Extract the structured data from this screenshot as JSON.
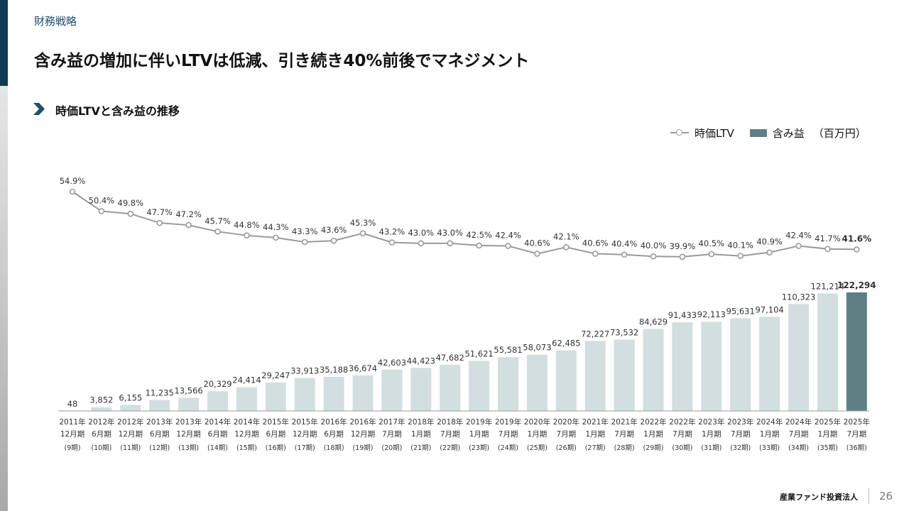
{
  "header": {
    "section": "財務戦略",
    "title": "含み益の増加に伴いLTVは低減、引き続き40%前後でマネジメント"
  },
  "subheader": {
    "title": "時価LTVと含み益の推移"
  },
  "legend": {
    "ltv_label": "時価LTV",
    "gain_label": "含み益",
    "unit": "（百万円）"
  },
  "footer": {
    "brand": "産業ファンド投資法人",
    "page": "26"
  },
  "colors": {
    "bar": "#d3dedf",
    "bar_highlight": "#5e8085",
    "line": "#9a9a9a",
    "accent": "#0f3a52"
  },
  "chart_data": {
    "type": "bar+line",
    "title": "時価LTVと含み益の推移",
    "categories": [
      [
        "2011年",
        "12月期",
        "(9期)"
      ],
      [
        "2012年",
        "6月期",
        "(10期)"
      ],
      [
        "2012年",
        "12月期",
        "(11期)"
      ],
      [
        "2013年",
        "6月期",
        "(12期)"
      ],
      [
        "2013年",
        "12月期",
        "(13期)"
      ],
      [
        "2014年",
        "6月期",
        "(14期)"
      ],
      [
        "2014年",
        "12月期",
        "(15期)"
      ],
      [
        "2015年",
        "6月期",
        "(16期)"
      ],
      [
        "2015年",
        "12月期",
        "(17期)"
      ],
      [
        "2016年",
        "6月期",
        "(18期)"
      ],
      [
        "2016年",
        "12月期",
        "(19期)"
      ],
      [
        "2017年",
        "7月期",
        "(20期)"
      ],
      [
        "2018年",
        "1月期",
        "(21期)"
      ],
      [
        "2018年",
        "7月期",
        "(22期)"
      ],
      [
        "2019年",
        "1月期",
        "(23期)"
      ],
      [
        "2019年",
        "7月期",
        "(24期)"
      ],
      [
        "2020年",
        "1月期",
        "(25期)"
      ],
      [
        "2020年",
        "7月期",
        "(26期)"
      ],
      [
        "2021年",
        "1月期",
        "(27期)"
      ],
      [
        "2021年",
        "7月期",
        "(28期)"
      ],
      [
        "2022年",
        "1月期",
        "(29期)"
      ],
      [
        "2022年",
        "7月期",
        "(30期)"
      ],
      [
        "2023年",
        "1月期",
        "(31期)"
      ],
      [
        "2023年",
        "7月期",
        "(32期)"
      ],
      [
        "2024年",
        "1月期",
        "(33期)"
      ],
      [
        "2024年",
        "7月期",
        "(34期)"
      ],
      [
        "2025年",
        "1月期",
        "(35期)"
      ],
      [
        "2025年",
        "7月期",
        "(36期)"
      ]
    ],
    "series": [
      {
        "name": "含み益",
        "type": "bar",
        "unit": "百万円",
        "values": [
          48,
          3852,
          6155,
          11235,
          13566,
          20329,
          24414,
          29247,
          33913,
          35188,
          36674,
          42603,
          44423,
          47682,
          51621,
          55581,
          58073,
          62485,
          72227,
          73532,
          84629,
          91433,
          92113,
          95631,
          97104,
          110323,
          121214,
          122294
        ],
        "labels": [
          "48",
          "3,852",
          "6,155",
          "11,235",
          "13,566",
          "20,329",
          "24,414",
          "29,247",
          "33,913",
          "35,188",
          "36,674",
          "42,603",
          "44,423",
          "47,682",
          "51,621",
          "55,581",
          "58,073",
          "62,485",
          "72,227",
          "73,532",
          "84,629",
          "91,433",
          "92,113",
          "95,631",
          "97,104",
          "110,323",
          "121,214",
          "122,294"
        ]
      },
      {
        "name": "時価LTV",
        "type": "line",
        "unit": "%",
        "values": [
          54.9,
          50.4,
          49.8,
          47.7,
          47.2,
          45.7,
          44.8,
          44.3,
          43.3,
          43.6,
          45.3,
          43.2,
          43.0,
          43.0,
          42.5,
          42.4,
          40.6,
          42.1,
          40.6,
          40.4,
          40.0,
          39.9,
          40.5,
          40.1,
          40.9,
          42.4,
          41.7,
          41.6
        ],
        "labels": [
          "54.9%",
          "50.4%",
          "49.8%",
          "47.7%",
          "47.2%",
          "45.7%",
          "44.8%",
          "44.3%",
          "43.3%",
          "43.6%",
          "45.3%",
          "43.2%",
          "43.0%",
          "43.0%",
          "42.5%",
          "42.4%",
          "40.6%",
          "42.1%",
          "40.6%",
          "40.4%",
          "40.0%",
          "39.9%",
          "40.5%",
          "40.1%",
          "40.9%",
          "42.4%",
          "41.7%",
          "41.6%"
        ]
      }
    ],
    "highlight_index": 27
  }
}
